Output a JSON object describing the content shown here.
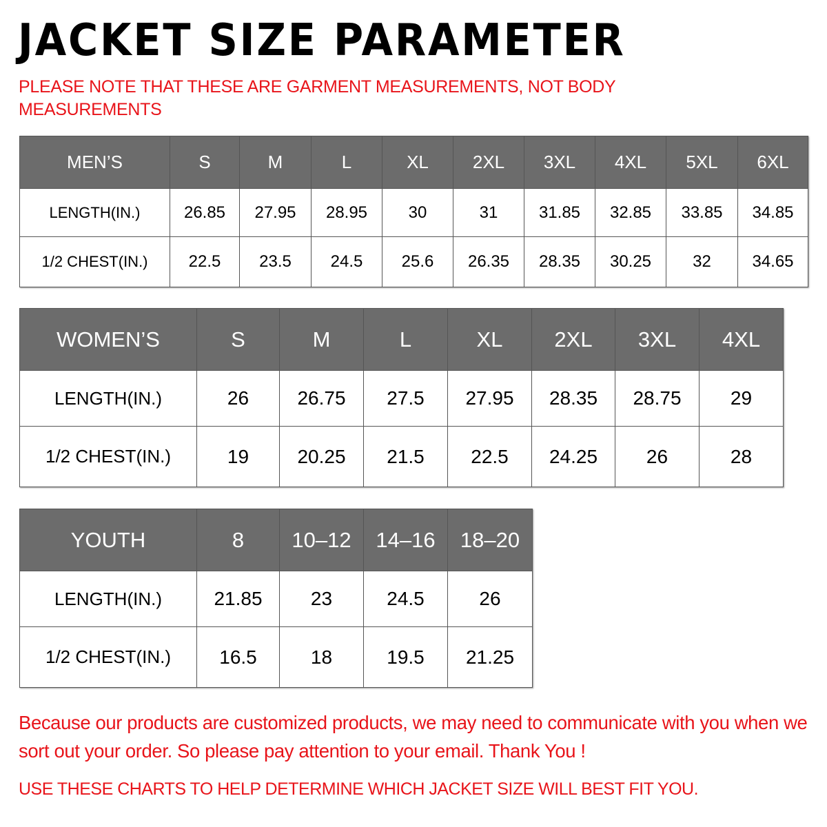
{
  "title": "JACKET SIZE PARAMETER",
  "note": "PLEASE NOTE THAT THESE ARE GARMENT MEASUREMENTS, NOT BODY MEASUREMENTS",
  "tables": {
    "men": {
      "header": [
        "MEN’S",
        "S",
        "M",
        "L",
        "XL",
        "2XL",
        "3XL",
        "4XL",
        "5XL",
        "6XL"
      ],
      "rows": [
        [
          "LENGTH(IN.)",
          "26.85",
          "27.95",
          "28.95",
          "30",
          "31",
          "31.85",
          "32.85",
          "33.85",
          "34.85"
        ],
        [
          "1/2 CHEST(IN.)",
          "22.5",
          "23.5",
          "24.5",
          "25.6",
          "26.35",
          "28.35",
          "30.25",
          "32",
          "34.65"
        ]
      ]
    },
    "women": {
      "header": [
        "WOMEN’S",
        "S",
        "M",
        "L",
        "XL",
        "2XL",
        "3XL",
        "4XL"
      ],
      "rows": [
        [
          "LENGTH(IN.)",
          "26",
          "26.75",
          "27.5",
          "27.95",
          "28.35",
          "28.75",
          "29"
        ],
        [
          "1/2 CHEST(IN.)",
          "19",
          "20.25",
          "21.5",
          "22.5",
          "24.25",
          "26",
          "28"
        ]
      ]
    },
    "youth": {
      "header": [
        "YOUTH",
        "8",
        "10–12",
        "14–16",
        "18–20"
      ],
      "rows": [
        [
          "LENGTH(IN.)",
          "21.85",
          "23",
          "24.5",
          "26"
        ],
        [
          "1/2 CHEST(IN.)",
          "16.5",
          "18",
          "19.5",
          "21.25"
        ]
      ]
    }
  },
  "message": "Because our products are customized products, we may need to communicate with you when we sort out your order. So please pay attention to your email. Thank You !",
  "footer": "USE THESE CHARTS TO HELP DETERMINE WHICH JACKET SIZE WILL BEST FIT YOU.",
  "colors": {
    "header_bg": "#6c6c6c",
    "accent_red": "#e8141a"
  }
}
